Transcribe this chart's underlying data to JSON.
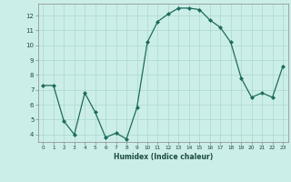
{
  "x": [
    0,
    1,
    2,
    3,
    4,
    5,
    6,
    7,
    8,
    9,
    10,
    11,
    12,
    13,
    14,
    15,
    16,
    17,
    18,
    19,
    20,
    21,
    22,
    23
  ],
  "y": [
    7.3,
    7.3,
    4.9,
    4.0,
    6.8,
    5.5,
    3.8,
    4.1,
    3.7,
    5.8,
    10.2,
    11.6,
    12.1,
    12.5,
    12.5,
    12.4,
    11.7,
    11.2,
    10.2,
    7.8,
    6.5,
    6.8,
    6.5,
    8.6
  ],
  "line_color": "#1e6b5e",
  "marker": "D",
  "marker_size": 2.0,
  "bg_color": "#cceee8",
  "grid_color": "#aad8d2",
  "xlabel": "Humidex (Indice chaleur)",
  "xlim": [
    -0.5,
    23.5
  ],
  "ylim": [
    3.5,
    12.8
  ],
  "yticks": [
    4,
    5,
    6,
    7,
    8,
    9,
    10,
    11,
    12
  ],
  "xticks": [
    0,
    1,
    2,
    3,
    4,
    5,
    6,
    7,
    8,
    9,
    10,
    11,
    12,
    13,
    14,
    15,
    16,
    17,
    18,
    19,
    20,
    21,
    22,
    23
  ]
}
